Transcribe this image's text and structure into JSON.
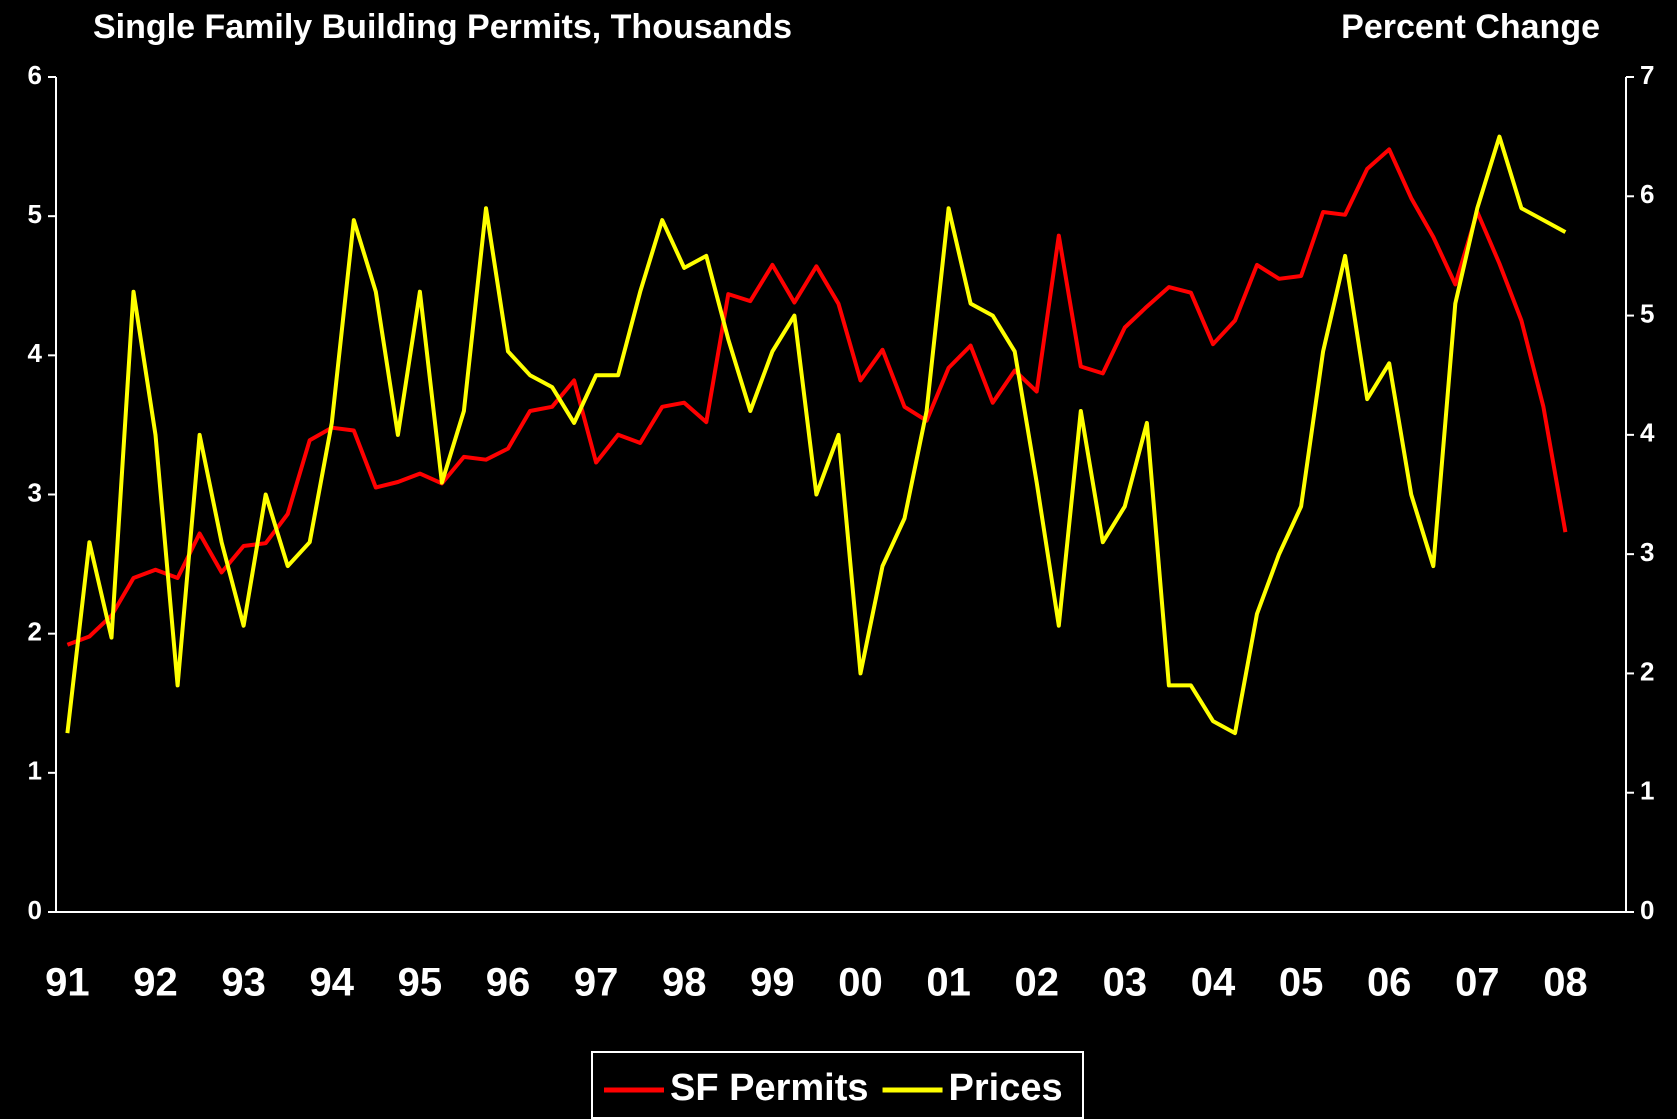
{
  "chart_data": {
    "type": "line",
    "title": "Single Family Building Permits, Thousands",
    "y2_label": "Percent Change",
    "categories": [
      "91",
      null,
      null,
      null,
      "92",
      null,
      null,
      null,
      "93",
      null,
      null,
      null,
      "94",
      null,
      null,
      null,
      "95",
      null,
      null,
      null,
      "96",
      null,
      null,
      null,
      "97",
      null,
      null,
      null,
      "98",
      null,
      null,
      null,
      "99",
      null,
      null,
      null,
      "00",
      null,
      null,
      null,
      "01",
      null,
      null,
      null,
      "02",
      null,
      null,
      null,
      "03",
      null,
      null,
      null,
      "04",
      null,
      null,
      null,
      "05",
      null,
      null,
      null,
      "06",
      null,
      null,
      null,
      "07",
      null,
      null,
      null,
      "08"
    ],
    "series": [
      {
        "name": "SF Permits",
        "color": "#ff0000",
        "axis": "y",
        "values": [
          1.92,
          1.98,
          2.13,
          2.4,
          2.46,
          2.4,
          2.72,
          2.44,
          2.63,
          2.65,
          2.86,
          3.39,
          3.48,
          3.46,
          3.05,
          3.09,
          3.15,
          3.08,
          3.27,
          3.25,
          3.33,
          3.6,
          3.63,
          3.82,
          3.23,
          3.43,
          3.37,
          3.63,
          3.66,
          3.52,
          4.44,
          4.39,
          4.65,
          4.38,
          4.64,
          4.37,
          3.82,
          4.04,
          3.63,
          3.53,
          3.91,
          4.07,
          3.66,
          3.89,
          3.74,
          4.86,
          3.92,
          3.87,
          4.2,
          4.35,
          4.49,
          4.45,
          4.08,
          4.25,
          4.65,
          4.55,
          4.57,
          5.03,
          5.01,
          5.34,
          5.48,
          5.13,
          4.85,
          4.51,
          5.03,
          4.66,
          4.25,
          3.63,
          2.73
        ]
      },
      {
        "name": "Prices",
        "color": "#ffff00",
        "axis": "y2",
        "values": [
          1.5,
          3.1,
          2.3,
          5.2,
          4.0,
          1.9,
          4.0,
          3.1,
          2.4,
          3.5,
          2.9,
          3.1,
          4.1,
          5.8,
          5.2,
          4.0,
          5.2,
          3.6,
          4.2,
          5.9,
          4.7,
          4.5,
          4.4,
          4.1,
          4.5,
          4.5,
          5.2,
          5.8,
          5.4,
          5.5,
          4.8,
          4.2,
          4.7,
          5.0,
          3.5,
          4.0,
          2.0,
          2.9,
          3.3,
          4.2,
          5.9,
          5.1,
          5.0,
          4.7,
          3.6,
          2.4,
          4.2,
          3.1,
          3.4,
          4.1,
          1.9,
          1.9,
          1.6,
          1.5,
          2.5,
          3.0,
          3.4,
          4.7,
          5.5,
          4.3,
          4.6,
          3.5,
          2.9,
          5.1,
          5.9,
          6.5,
          5.9,
          5.8,
          5.7
        ]
      }
    ],
    "ylim": [
      0,
      6
    ],
    "yticks": [
      0,
      1,
      2,
      3,
      4,
      5,
      6
    ],
    "y2lim": [
      0,
      7
    ],
    "y2ticks": [
      0,
      1,
      2,
      3,
      4,
      5,
      6,
      7
    ],
    "legend": "bottom"
  }
}
